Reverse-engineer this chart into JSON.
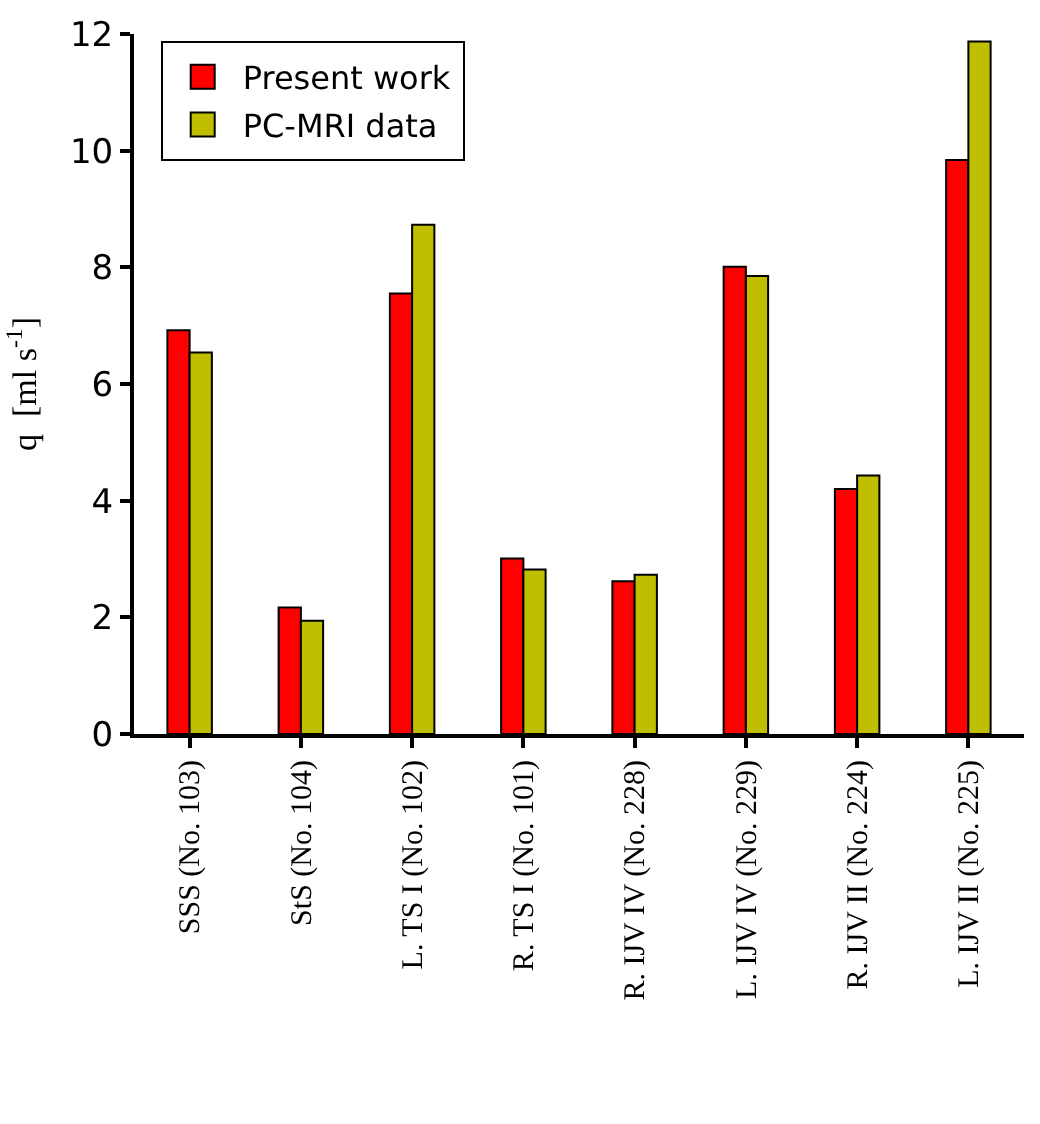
{
  "chart_data": {
    "type": "bar",
    "ylabel": "q  [ml s$^{-1}$]",
    "categories": [
      "SSS (No. 103)",
      "StS (No. 104)",
      "L. TS I (No. 102)",
      "R. TS I (No. 101)",
      "R. IJV IV (No. 228)",
      "L. IJV IV (No. 229)",
      "R. IJV II (No. 224)",
      "L. IJV II (No. 225)"
    ],
    "series": [
      {
        "name": "Present work",
        "color": "#ff0000",
        "values": [
          6.92,
          2.17,
          7.55,
          3.01,
          2.62,
          8.01,
          4.2,
          9.84
        ]
      },
      {
        "name": "PC-MRI data",
        "color": "#bfbf00",
        "values": [
          6.54,
          1.94,
          8.73,
          2.82,
          2.73,
          7.85,
          4.43,
          11.87
        ]
      }
    ],
    "ylim": [
      0,
      12
    ],
    "yticks": [
      0,
      2,
      4,
      6,
      8,
      10,
      12
    ],
    "legend": "top left"
  }
}
